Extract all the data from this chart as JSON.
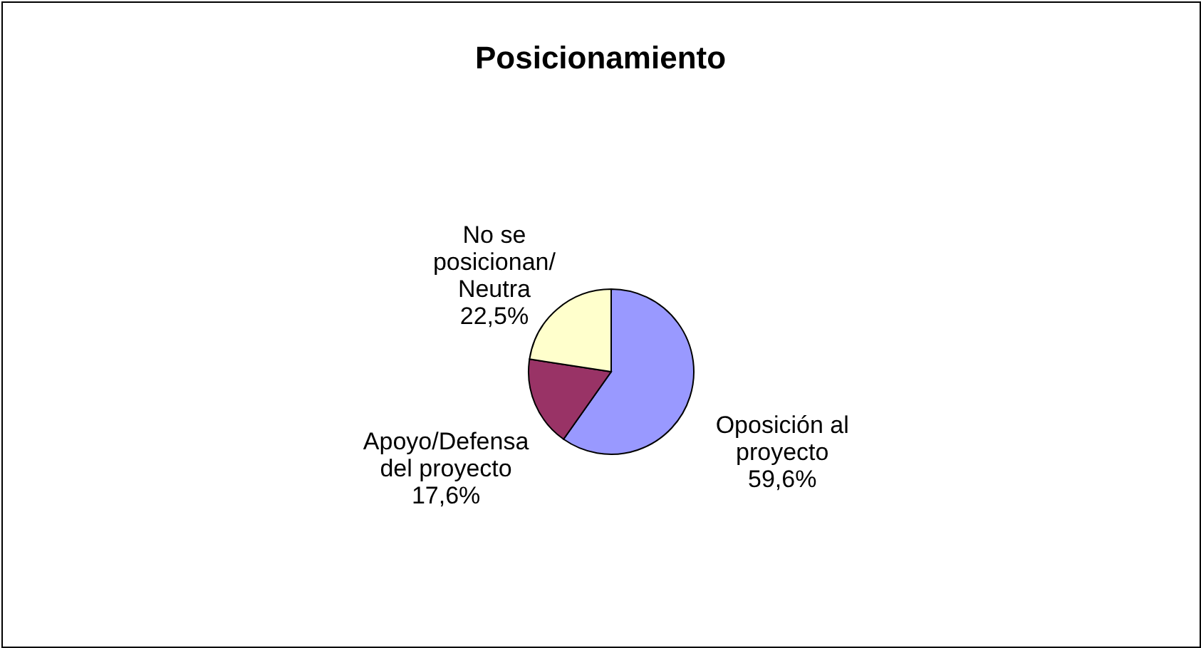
{
  "chart_data": {
    "type": "pie",
    "title": "Posicionamiento",
    "categories": [
      "Oposición al\nproyecto",
      "Apoyo/Defensa\ndel proyecto",
      "No se\nposicionan/\nNeutra"
    ],
    "values": [
      59.6,
      17.6,
      22.5
    ],
    "value_labels": [
      "59,6%",
      "17,6%",
      "22,5%"
    ],
    "colors": [
      "#9999ff",
      "#993366",
      "#ffffcc"
    ],
    "legend": false
  }
}
